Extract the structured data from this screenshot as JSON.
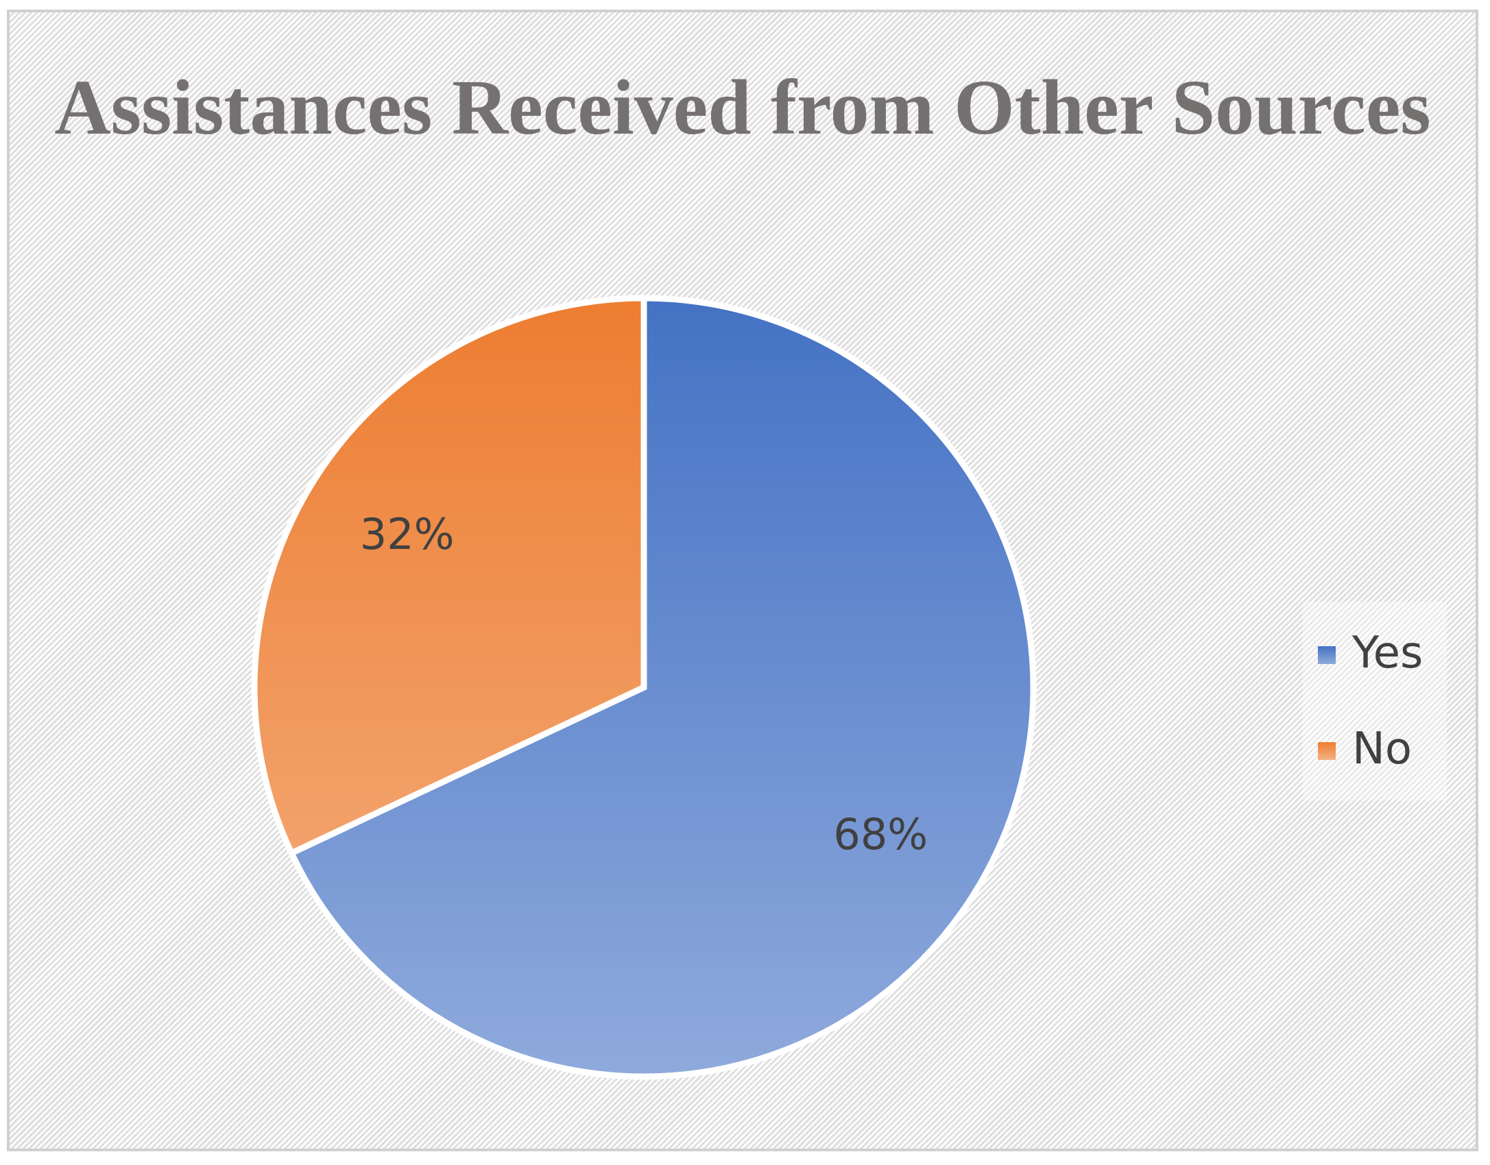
{
  "chart_data": {
    "type": "pie",
    "title": "Assistances Received from Other Sources",
    "slices": [
      {
        "label": "Yes",
        "value": 68,
        "data_label": "68%",
        "color_top": "#4472C4",
        "color_bottom": "#8FAADC"
      },
      {
        "label": "No",
        "value": 32,
        "data_label": "32%",
        "color_top": "#ED7D31",
        "color_bottom": "#F4B183"
      }
    ],
    "legend_position": "right"
  },
  "colors": {
    "title": "#767171",
    "data_label": "#404040",
    "slice_border": "#ffffff"
  }
}
